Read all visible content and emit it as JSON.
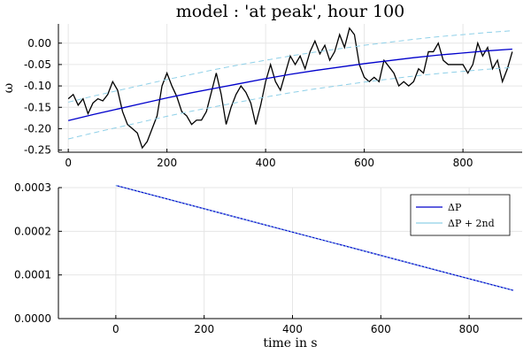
{
  "chart_data": [
    {
      "type": "line",
      "title": "model :  'at peak',  hour 100",
      "xlabel": "",
      "ylabel": "ω",
      "xlim": [
        -20,
        920
      ],
      "ylim": [
        -0.255,
        0.045
      ],
      "xticks": [
        0,
        200,
        400,
        600,
        800
      ],
      "yticks": [
        0.0,
        -0.05,
        -0.1,
        -0.15,
        -0.2,
        -0.25
      ],
      "ytick_labels": [
        "0.00",
        "-0.05",
        "-0.10",
        "-0.15",
        "-0.20",
        "-0.25"
      ],
      "grid": true,
      "legend": "none",
      "series": [
        {
          "color": "#000000",
          "style": "solid",
          "x": [
            0,
            10,
            20,
            30,
            40,
            50,
            60,
            70,
            80,
            90,
            100,
            110,
            120,
            130,
            140,
            150,
            160,
            170,
            180,
            190,
            200,
            210,
            220,
            230,
            240,
            250,
            260,
            270,
            280,
            290,
            300,
            310,
            320,
            330,
            340,
            350,
            360,
            370,
            380,
            390,
            400,
            410,
            420,
            430,
            440,
            450,
            460,
            470,
            480,
            490,
            500,
            510,
            520,
            530,
            540,
            550,
            560,
            570,
            580,
            590,
            600,
            610,
            620,
            630,
            640,
            650,
            660,
            670,
            680,
            690,
            700,
            710,
            720,
            730,
            740,
            750,
            760,
            770,
            780,
            790,
            800,
            810,
            820,
            830,
            840,
            850,
            860,
            870,
            880,
            890,
            900
          ],
          "y": [
            -0.13,
            -0.12,
            -0.145,
            -0.13,
            -0.165,
            -0.14,
            -0.13,
            -0.135,
            -0.12,
            -0.09,
            -0.11,
            -0.16,
            -0.19,
            -0.2,
            -0.21,
            -0.245,
            -0.23,
            -0.2,
            -0.17,
            -0.1,
            -0.07,
            -0.1,
            -0.125,
            -0.16,
            -0.17,
            -0.19,
            -0.18,
            -0.18,
            -0.16,
            -0.115,
            -0.07,
            -0.12,
            -0.19,
            -0.15,
            -0.12,
            -0.1,
            -0.115,
            -0.14,
            -0.19,
            -0.145,
            -0.09,
            -0.05,
            -0.09,
            -0.11,
            -0.07,
            -0.03,
            -0.05,
            -0.03,
            -0.06,
            -0.02,
            0.005,
            -0.025,
            -0.005,
            -0.04,
            -0.02,
            0.02,
            -0.01,
            0.035,
            0.02,
            -0.05,
            -0.08,
            -0.09,
            -0.08,
            -0.09,
            -0.04,
            -0.055,
            -0.07,
            -0.1,
            -0.09,
            -0.1,
            -0.09,
            -0.06,
            -0.07,
            -0.02,
            -0.02,
            0.0,
            -0.04,
            -0.05,
            -0.05,
            -0.05,
            -0.05,
            -0.07,
            -0.05,
            0.0,
            -0.03,
            -0.01,
            -0.06,
            -0.04,
            -0.09,
            -0.06,
            -0.02
          ]
        },
        {
          "color": "#0000cc",
          "style": "solid",
          "x": [
            0,
            50,
            100,
            150,
            200,
            250,
            300,
            350,
            400,
            450,
            500,
            550,
            600,
            650,
            700,
            750,
            800,
            850,
            900
          ],
          "y": [
            -0.181,
            -0.167,
            -0.154,
            -0.141,
            -0.128,
            -0.116,
            -0.105,
            -0.094,
            -0.083,
            -0.073,
            -0.064,
            -0.056,
            -0.048,
            -0.041,
            -0.034,
            -0.028,
            -0.023,
            -0.018,
            -0.014
          ]
        },
        {
          "color": "#8fd0e8",
          "style": "dashed",
          "x": [
            0,
            50,
            100,
            150,
            200,
            250,
            300,
            350,
            400,
            450,
            500,
            550,
            600,
            650,
            700,
            750,
            800,
            850,
            900
          ],
          "y": [
            -0.138,
            -0.124,
            -0.111,
            -0.098,
            -0.085,
            -0.073,
            -0.061,
            -0.05,
            -0.04,
            -0.03,
            -0.021,
            -0.013,
            -0.005,
            0.002,
            0.009,
            0.015,
            0.02,
            0.025,
            0.029
          ]
        },
        {
          "color": "#8fd0e8",
          "style": "dashed",
          "x": [
            0,
            50,
            100,
            150,
            200,
            250,
            300,
            350,
            400,
            450,
            500,
            550,
            600,
            650,
            700,
            750,
            800,
            850,
            900
          ],
          "y": [
            -0.224,
            -0.21,
            -0.197,
            -0.184,
            -0.171,
            -0.159,
            -0.148,
            -0.137,
            -0.126,
            -0.116,
            -0.107,
            -0.099,
            -0.091,
            -0.084,
            -0.077,
            -0.071,
            -0.066,
            -0.061,
            -0.057
          ]
        }
      ]
    },
    {
      "type": "line",
      "title": "",
      "xlabel": "time in s",
      "ylabel": "",
      "xlim": [
        -130,
        920
      ],
      "ylim": [
        0,
        0.0003
      ],
      "xticks": [
        0,
        200,
        400,
        600,
        800
      ],
      "yticks": [
        0.0,
        0.0001,
        0.0002,
        0.0003
      ],
      "ytick_labels": [
        "0.0000",
        "0.0001",
        "0.0002",
        "0.0003"
      ],
      "grid": true,
      "legend": "top-right",
      "series": [
        {
          "name": "ΔP",
          "color": "#0000cc",
          "style": "solid",
          "x": [
            0,
            900
          ],
          "y": [
            0.000305,
            6.45e-05
          ]
        },
        {
          "name": "ΔP + 2nd",
          "color": "#8fd0e8",
          "style": "dotted",
          "x": [
            0,
            900
          ],
          "y": [
            0.000305,
            6.45e-05
          ]
        }
      ]
    }
  ]
}
